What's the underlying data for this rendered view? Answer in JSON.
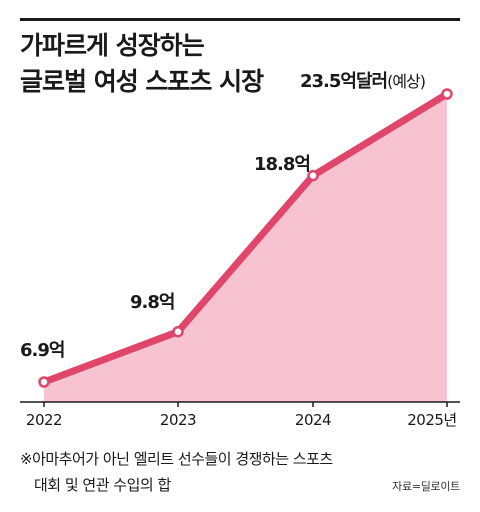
{
  "title": {
    "line1": "가파르게 성장하는",
    "line2": "글로벌 여성 스포츠 시장"
  },
  "chart_data": {
    "type": "area",
    "categories": [
      "2022",
      "2023",
      "2024",
      "2025년"
    ],
    "values": [
      6.9,
      9.8,
      18.8,
      23.5
    ],
    "data_labels": [
      "6.9억",
      "9.8억",
      "18.8억",
      "23.5억달러"
    ],
    "last_label_suffix": "(예상)",
    "unit": "억달러",
    "ylim": [
      5,
      25
    ],
    "grid": false,
    "legend": "none",
    "colors": {
      "line": "#e0456a",
      "fill": "#f7c3d1",
      "marker_fill": "#ffffff",
      "axis": "#1a1a1a"
    }
  },
  "footnote": {
    "line1": "※아마추어가 아닌 엘리트 선수들이 경쟁하는 스포츠",
    "line2": "대회 및 연관 수입의 합"
  },
  "source": "자료=딜로이트"
}
